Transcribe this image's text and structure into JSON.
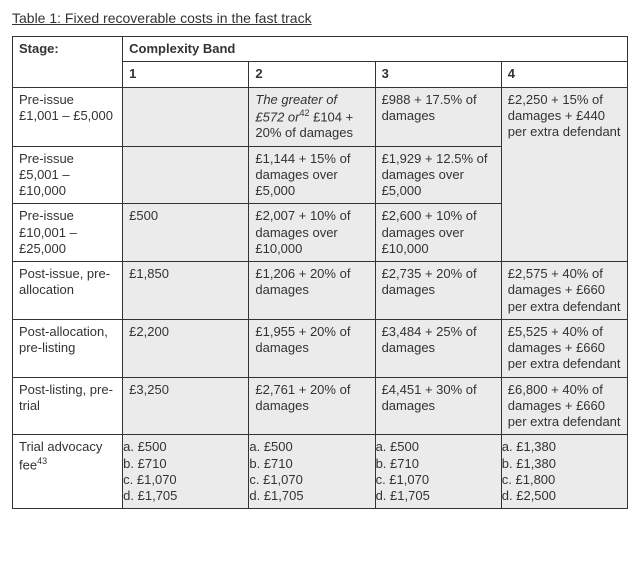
{
  "title": "Table 1: Fixed recoverable costs in the fast track",
  "header": {
    "stage": "Stage:",
    "complexity": "Complexity Band",
    "bands": [
      "1",
      "2",
      "3",
      "4"
    ]
  },
  "rows": {
    "r1": {
      "stage": "Pre-issue £1,001 – £5,000",
      "b1": "",
      "b2_part1": "The greater of £572 or",
      "b2_sup": "42",
      "b2_part2": " £104 + 20% of damages",
      "b3": "£988 + 17.5% of damages",
      "b4": "£2,250 + 15% of damages + £440 per extra defendant"
    },
    "r2": {
      "stage": "Pre-issue £5,001 – £10,000",
      "b2": "£1,144 + 15% of damages over £5,000",
      "b3": "£1,929 + 12.5% of damages over £5,000"
    },
    "r3": {
      "stage": "Pre-issue £10,001 – £25,000",
      "b1": "£500",
      "b2": "£2,007 + 10% of damages over £10,000",
      "b3": "£2,600 + 10% of damages over £10,000"
    },
    "r4": {
      "stage": "Post-issue, pre-allocation",
      "b1": "£1,850",
      "b2": "£1,206 + 20% of damages",
      "b3": "£2,735 + 20% of damages",
      "b4": "£2,575 + 40% of damages + £660 per extra defendant"
    },
    "r5": {
      "stage": "Post-allocation, pre-listing",
      "b1": "£2,200",
      "b2": "£1,955 + 20% of damages",
      "b3": "£3,484 + 25% of damages",
      "b4": "£5,525 + 40% of damages + £660 per extra defendant"
    },
    "r6": {
      "stage": "Post-listing, pre-trial",
      "b1": "£3,250",
      "b2": "£2,761 + 20% of damages",
      "b3": "£4,451 + 30% of damages",
      "b4": "£6,800 + 40% of damages + £660 per extra defendant"
    },
    "r7": {
      "stage_label": "Trial advocacy fee",
      "stage_sup": "43",
      "b1": {
        "a": "a.   £500",
        "b": "b.   £710",
        "c": "c.   £1,070",
        "d": "d.   £1,705"
      },
      "b2": {
        "a": "a.   £500",
        "b": "b.   £710",
        "c": "c.   £1,070",
        "d": "d.   £1,705"
      },
      "b3": {
        "a": "a.   £500",
        "b": "b.   £710",
        "c": "c.   £1,070",
        "d": "d.   £1,705"
      },
      "b4": {
        "a": "a.   £1,380",
        "b": "b.   £1,380",
        "c": "c.   £1,800",
        "d": "d.   £2,500"
      }
    }
  }
}
